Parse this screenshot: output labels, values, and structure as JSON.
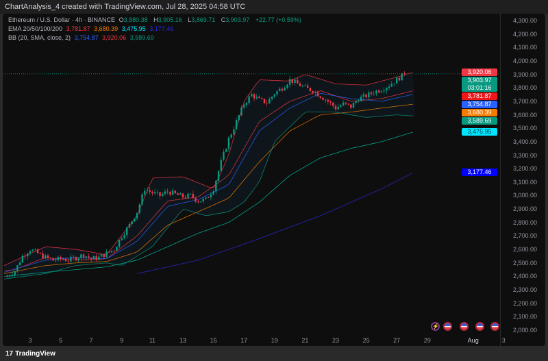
{
  "title": "ChartAnalysis_4 created with TradingView.com, Jul 28, 2025 04:58 UTC",
  "legend": {
    "symbol": "Ethereum / U.S. Dollar · 4h · BINANCE",
    "o_label": "O",
    "o": "3,880.38",
    "h_label": "H",
    "h": "3,905.16",
    "l_label": "L",
    "l": "3,869.71",
    "c_label": "C",
    "c": "3,903.97",
    "change": "+22.77 (+0.59%)",
    "ema_label": "EMA 20/50/100/200",
    "ema20": "3,781.87",
    "ema50": "3,680.39",
    "ema100": "3,475.95",
    "ema200": "3,177.46",
    "bb_label": "BB (20, SMA, close, 2)",
    "bb_basis": "3,754.87",
    "bb_upper": "3,920.06",
    "bb_lower": "3,589.69"
  },
  "colors": {
    "up": "#089981",
    "down": "#f23645",
    "ema20": "#f23645",
    "ema50": "#f57c00",
    "ema100": "#00bfa5",
    "ema200": "#2a2ae0",
    "bb_basis": "#2962ff",
    "bb_band": "#f23645",
    "bb_lower": "#089981"
  },
  "badges": [
    {
      "value": 3920.06,
      "text": "3,920.06",
      "bg": "#f23645",
      "fg": "#fff"
    },
    {
      "value": 3903.97,
      "text": "3,903.97",
      "sub": "03:01:16",
      "bg": "#089981",
      "fg": "#fff"
    },
    {
      "value": 3781.87,
      "text": "3,781.87",
      "bg": "#f0161a",
      "fg": "#fff"
    },
    {
      "value": 3754.87,
      "text": "3,754.87",
      "bg": "#2962ff",
      "fg": "#fff"
    },
    {
      "value": 3680.39,
      "text": "3,680.39",
      "bg": "#f57c00",
      "fg": "#fff"
    },
    {
      "value": 3589.69,
      "text": "3,589.69",
      "bg": "#089981",
      "fg": "#fff"
    },
    {
      "value": 3475.95,
      "text": "3,475.95",
      "bg": "#00e5ff",
      "fg": "#0a3a40"
    },
    {
      "value": 3177.46,
      "text": "3,177.46",
      "bg": "#0000ff",
      "fg": "#fff"
    }
  ],
  "price_ticks": [
    "2,000.00",
    "2,100.00",
    "2,200.00",
    "2,300.00",
    "2,400.00",
    "2,500.00",
    "2,600.00",
    "2,700.00",
    "2,800.00",
    "2,900.00",
    "3,000.00",
    "3,100.00",
    "3,200.00",
    "3,300.00",
    "3,400.00",
    "3,500.00",
    "3,600.00",
    "3,700.00",
    "3,800.00",
    "3,900.00",
    "4,000.00",
    "4,100.00",
    "4,200.00",
    "4,300.00"
  ],
  "time_ticks": [
    {
      "day": 3,
      "label": "3"
    },
    {
      "day": 5,
      "label": "5"
    },
    {
      "day": 7,
      "label": "7"
    },
    {
      "day": 9,
      "label": "9"
    },
    {
      "day": 11,
      "label": "11"
    },
    {
      "day": 13,
      "label": "13"
    },
    {
      "day": 15,
      "label": "15"
    },
    {
      "day": 17,
      "label": "17"
    },
    {
      "day": 19,
      "label": "19"
    },
    {
      "day": 21,
      "label": "21"
    },
    {
      "day": 23,
      "label": "23"
    },
    {
      "day": 25,
      "label": "25"
    },
    {
      "day": 27,
      "label": "27"
    },
    {
      "day": 29,
      "label": "29"
    },
    {
      "day": 32,
      "label": "Aug"
    },
    {
      "day": 34,
      "label": "3"
    }
  ],
  "events": [
    {
      "type": "lightning-icon",
      "day": 29.5
    },
    {
      "type": "us-flag-icon",
      "day": 30.3
    },
    {
      "type": "us-flag-icon",
      "day": 31.4
    },
    {
      "type": "us-flag-icon",
      "day": 32.4
    },
    {
      "type": "us-flag-icon",
      "day": 33.4
    }
  ],
  "footer": "TradingView",
  "chart_data": {
    "type": "candlestick",
    "y_range": [
      2000,
      4300
    ],
    "closes_12h": {
      "start_day": 1.5,
      "values": [
        2400,
        2440,
        2550,
        2600,
        2570,
        2540,
        2520,
        2530,
        2520,
        2540,
        2560,
        2530,
        2540,
        2570,
        2600,
        2700,
        2780,
        2880,
        3050,
        3020,
        3000,
        3030,
        3010,
        2990,
        3000,
        2960,
        2970,
        3050,
        3250,
        3420,
        3550,
        3680,
        3750,
        3710,
        3690,
        3760,
        3800,
        3860,
        3830,
        3800,
        3780,
        3740,
        3700,
        3650,
        3680,
        3660,
        3720,
        3740,
        3770,
        3790,
        3820,
        3860,
        3904
      ]
    },
    "lines": {
      "ema20": [
        [
          1.3,
          2440
        ],
        [
          2,
          2450
        ],
        [
          4,
          2540
        ],
        [
          6,
          2520
        ],
        [
          8,
          2530
        ],
        [
          10,
          2700
        ],
        [
          12,
          2960
        ],
        [
          14,
          2990
        ],
        [
          16,
          3150
        ],
        [
          18,
          3550
        ],
        [
          20,
          3700
        ],
        [
          22,
          3780
        ],
        [
          24,
          3700
        ],
        [
          26,
          3720
        ],
        [
          28.2,
          3782
        ]
      ],
      "ema50": [
        [
          1.3,
          2420
        ],
        [
          4,
          2480
        ],
        [
          6,
          2500
        ],
        [
          8,
          2510
        ],
        [
          10,
          2580
        ],
        [
          12,
          2780
        ],
        [
          14,
          2880
        ],
        [
          16,
          2980
        ],
        [
          18,
          3250
        ],
        [
          20,
          3480
        ],
        [
          22,
          3600
        ],
        [
          24,
          3620
        ],
        [
          26,
          3650
        ],
        [
          28.2,
          3680
        ]
      ],
      "ema100": [
        [
          1.3,
          2400
        ],
        [
          4,
          2430
        ],
        [
          6,
          2450
        ],
        [
          8,
          2470
        ],
        [
          10,
          2520
        ],
        [
          12,
          2620
        ],
        [
          14,
          2720
        ],
        [
          16,
          2800
        ],
        [
          18,
          2950
        ],
        [
          20,
          3150
        ],
        [
          22,
          3280
        ],
        [
          24,
          3350
        ],
        [
          26,
          3400
        ],
        [
          28.2,
          3476
        ]
      ],
      "ema200": [
        [
          10,
          2420
        ],
        [
          14,
          2520
        ],
        [
          18,
          2680
        ],
        [
          22,
          2850
        ],
        [
          26,
          3050
        ],
        [
          28.2,
          3177
        ]
      ],
      "bb_basis": [
        [
          1.3,
          2430
        ],
        [
          4,
          2520
        ],
        [
          6,
          2540
        ],
        [
          8,
          2530
        ],
        [
          10,
          2660
        ],
        [
          12,
          2920
        ],
        [
          14,
          2970
        ],
        [
          16,
          3080
        ],
        [
          18,
          3480
        ],
        [
          20,
          3650
        ],
        [
          22,
          3760
        ],
        [
          24,
          3720
        ],
        [
          26,
          3700
        ],
        [
          28.2,
          3755
        ]
      ],
      "bb_upper": [
        [
          1.3,
          2480
        ],
        [
          4,
          2620
        ],
        [
          6,
          2600
        ],
        [
          8,
          2560
        ],
        [
          10,
          2850
        ],
        [
          11,
          3130
        ],
        [
          13,
          3140
        ],
        [
          15,
          3050
        ],
        [
          16,
          3300
        ],
        [
          17,
          3700
        ],
        [
          18,
          3860
        ],
        [
          20,
          3850
        ],
        [
          21,
          3900
        ],
        [
          23,
          3830
        ],
        [
          25,
          3820
        ],
        [
          27,
          3880
        ],
        [
          28.2,
          3920
        ]
      ],
      "bb_lower": [
        [
          1.3,
          2380
        ],
        [
          4,
          2420
        ],
        [
          6,
          2480
        ],
        [
          8,
          2500
        ],
        [
          9,
          2480
        ],
        [
          11,
          2620
        ],
        [
          13,
          2900
        ],
        [
          14.5,
          2850
        ],
        [
          16,
          2880
        ],
        [
          17,
          2950
        ],
        [
          18,
          3100
        ],
        [
          19,
          3400
        ],
        [
          21,
          3620
        ],
        [
          23,
          3620
        ],
        [
          25,
          3580
        ],
        [
          27,
          3600
        ],
        [
          28.2,
          3590
        ]
      ]
    }
  }
}
